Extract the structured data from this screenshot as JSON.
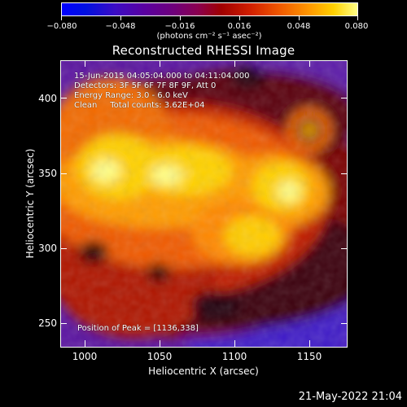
{
  "colorbar": {
    "ticks": [
      "−0.080",
      "−0.048",
      "−0.016",
      "0.016",
      "0.048",
      "0.080"
    ],
    "units": "(photons cm⁻² s⁻¹ asec⁻²)",
    "colors": [
      "#0000ff",
      "#5a00a0",
      "#a00000",
      "#f05a00",
      "#ffd100",
      "#ffff88"
    ]
  },
  "title": "Reconstructed RHESSI Image",
  "annotations": {
    "time_range": "15-Jun-2015 04:05:04.000 to 04:11:04.000",
    "detectors": "Detectors: 3F 5F 6F 7F 8F 9F, Att 0",
    "energy": "Energy Range: 3.0 - 6.0 keV",
    "clean": "Clean     Total counts: 3.62E+04",
    "peak": "Position of Peak = [1136,338]"
  },
  "axes": {
    "xlabel": "Heliocentric X (arcsec)",
    "ylabel": "Heliocentric Y (arcsec)",
    "xticks": [
      "1000",
      "1050",
      "1100",
      "1150"
    ],
    "yticks": [
      "400",
      "350",
      "300",
      "250"
    ],
    "xrange": [
      984,
      1176
    ],
    "yrange": [
      234,
      426
    ]
  },
  "timestamp": "21-May-2022 21:04"
}
